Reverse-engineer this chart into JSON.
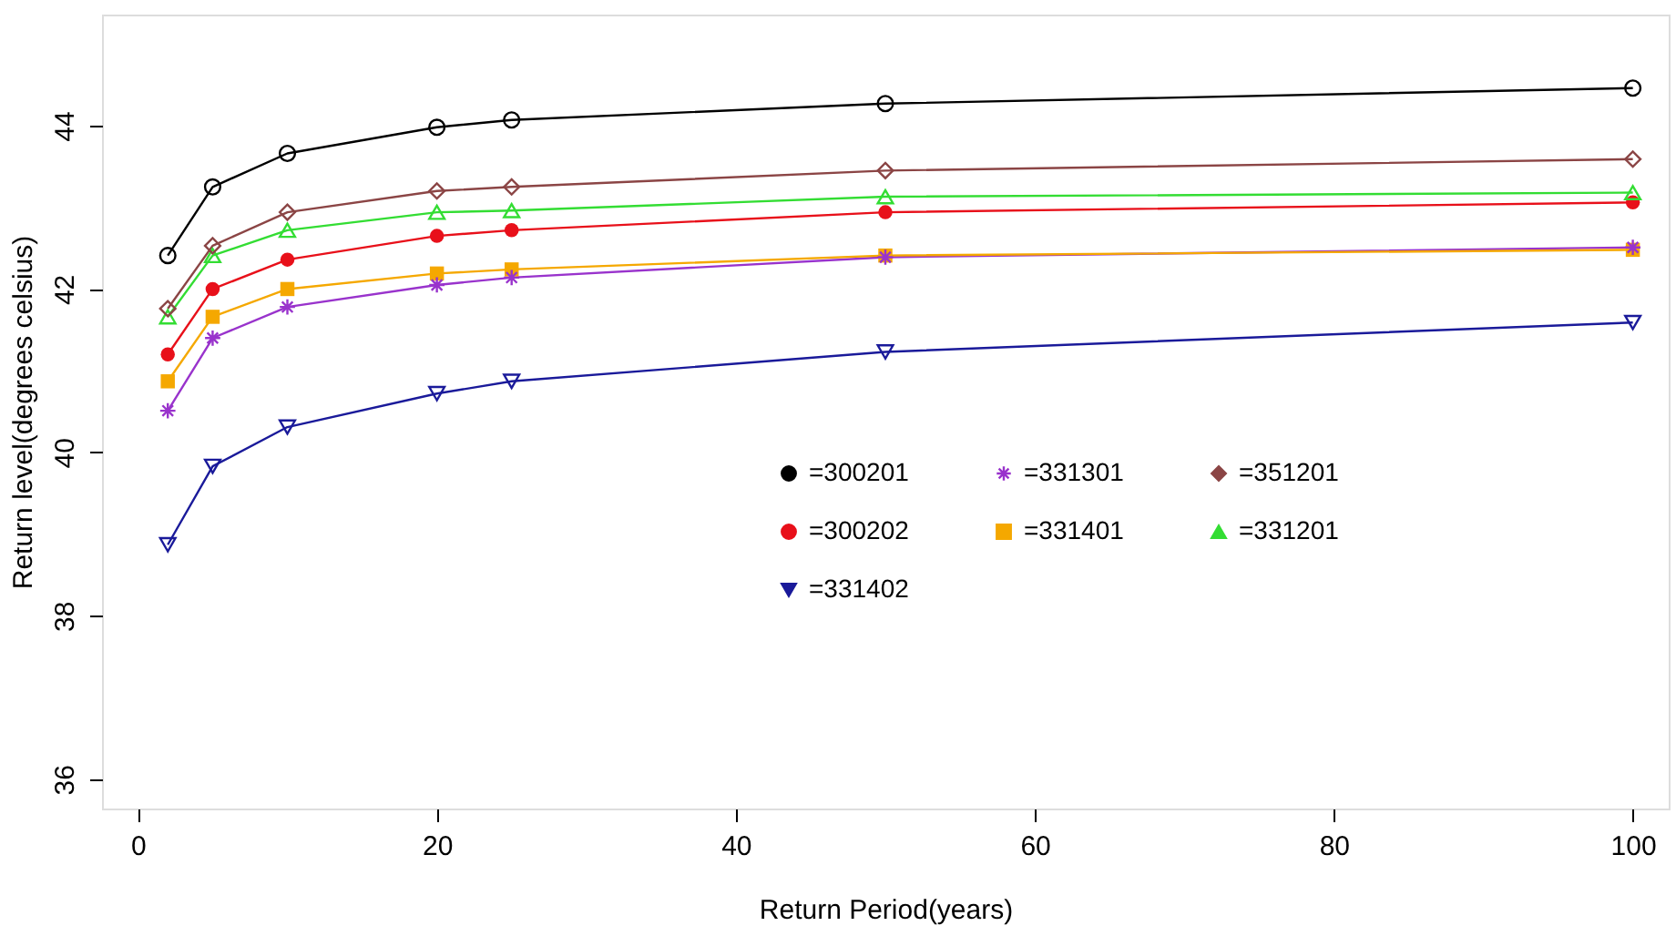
{
  "chart_data": {
    "type": "line",
    "xlabel": "Return Period(years)",
    "ylabel": "Return level(degrees celsius)",
    "x": [
      2,
      5,
      10,
      20,
      25,
      50,
      100
    ],
    "xlim": [
      -2.4,
      102.4
    ],
    "xticks": [
      0,
      20,
      40,
      60,
      80,
      100
    ],
    "ylim": [
      35.64,
      45.36
    ],
    "yticks": [
      36,
      38,
      40,
      42,
      44
    ],
    "grid": false,
    "legend": "bottom right",
    "line_style": "solid",
    "series": [
      {
        "name": "=300201",
        "color": "#000000",
        "marker": "circle",
        "values": [
          42.41,
          43.25,
          43.66,
          43.98,
          44.07,
          44.27,
          44.46
        ]
      },
      {
        "name": "=300202",
        "color": "#e8101a",
        "marker": "dot",
        "values": [
          41.2,
          42.0,
          42.36,
          42.65,
          42.72,
          42.94,
          43.06
        ]
      },
      {
        "name": "=331201",
        "color": "#33dd33",
        "marker": "triangle",
        "values": [
          41.66,
          42.41,
          42.72,
          42.94,
          42.96,
          43.13,
          43.18
        ]
      },
      {
        "name": "=331301",
        "color": "#9933cc",
        "marker": "cross",
        "values": [
          40.51,
          41.4,
          41.78,
          42.05,
          42.14,
          42.39,
          42.51
        ]
      },
      {
        "name": "=331401",
        "color": "#f5a800",
        "marker": "square",
        "values": [
          40.87,
          41.66,
          42.0,
          42.19,
          42.24,
          42.41,
          42.48
        ]
      },
      {
        "name": "=331402",
        "color": "#1a1a9a",
        "marker": "triangle-down",
        "values": [
          38.87,
          39.83,
          40.31,
          40.72,
          40.87,
          41.23,
          41.59
        ]
      },
      {
        "name": "=351201",
        "color": "#8b4545",
        "marker": "diamond",
        "values": [
          41.76,
          42.53,
          42.94,
          43.2,
          43.25,
          43.45,
          43.59
        ]
      }
    ]
  }
}
